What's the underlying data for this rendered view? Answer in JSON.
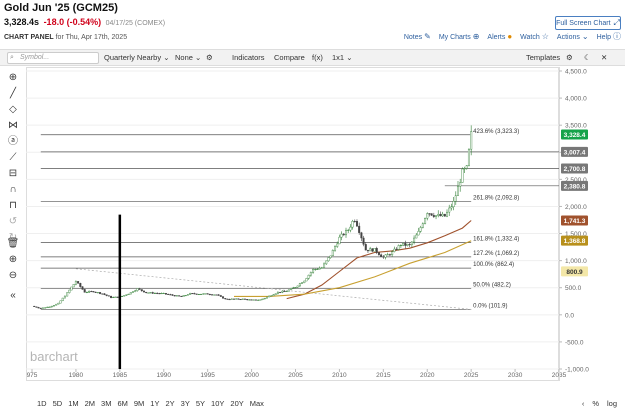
{
  "header": {
    "title": "Gold Jun '25 (GCM25)",
    "price": "3,328.4s",
    "change": "-18.0 (-0.54%)",
    "timestamp": "04/17/25 (COMEX)",
    "panel_label": "CHART PANEL",
    "panel_date": "for Thu, Apr 17th, 2025",
    "full_screen": "Full Screen Chart",
    "links": {
      "notes": "Notes",
      "my_charts": "My Charts",
      "alerts": "Alerts",
      "watch": "Watch",
      "actions": "Actions",
      "help": "Help"
    }
  },
  "toolbar": {
    "symbol_placeholder": "Symbol...",
    "period": "Quarterly Nearby",
    "overlay": "None",
    "indicators": "Indicators",
    "compare": "Compare",
    "fx": "f(x)",
    "layout": "1x1",
    "templates": "Templates"
  },
  "colors": {
    "current": "#16a34a",
    "gray_label": "#777777",
    "ma_brown": "#a0522d",
    "ma_gold": "#c8a030",
    "ma_label_gold": "#b8901c",
    "candle_up": "#2e7d32",
    "candle_down": "#444444"
  },
  "chart_data": {
    "type": "candlestick",
    "x_axis": {
      "range": [
        1975,
        2035
      ],
      "ticks": [
        "975",
        "1980",
        "1985",
        "1990",
        "1995",
        "2000",
        "2005",
        "2010",
        "2015",
        "2020",
        "2025",
        "2030",
        "2035"
      ]
    },
    "y_axis": {
      "range": [
        -1000,
        4500
      ],
      "ticks": [
        "4,500.0",
        "4,000.0",
        "3,500.0",
        "3,000.0",
        "2,500.0",
        "2,000.0",
        "1,500.0",
        "1,000.0",
        "500.0",
        "0.0",
        "-500.0",
        "-1,000.0"
      ]
    },
    "watermark": "barchart",
    "price_path": [
      [
        1975,
        160
      ],
      [
        1976,
        120
      ],
      [
        1977,
        150
      ],
      [
        1978,
        210
      ],
      [
        1979,
        400
      ],
      [
        1980,
        620
      ],
      [
        1981,
        420
      ],
      [
        1982,
        430
      ],
      [
        1983,
        390
      ],
      [
        1984,
        320
      ],
      [
        1985,
        330
      ],
      [
        1986,
        390
      ],
      [
        1987,
        480
      ],
      [
        1988,
        410
      ],
      [
        1989,
        400
      ],
      [
        1990,
        390
      ],
      [
        1991,
        360
      ],
      [
        1992,
        335
      ],
      [
        1993,
        390
      ],
      [
        1994,
        385
      ],
      [
        1995,
        385
      ],
      [
        1996,
        370
      ],
      [
        1997,
        290
      ],
      [
        1998,
        290
      ],
      [
        1999,
        290
      ],
      [
        2000,
        272
      ],
      [
        2001,
        276
      ],
      [
        2002,
        345
      ],
      [
        2003,
        415
      ],
      [
        2004,
        440
      ],
      [
        2005,
        515
      ],
      [
        2006,
        635
      ],
      [
        2007,
        835
      ],
      [
        2008,
        870
      ],
      [
        2009,
        1100
      ],
      [
        2010,
        1420
      ],
      [
        2011,
        1570
      ],
      [
        2011.7,
        1780
      ],
      [
        2012,
        1670
      ],
      [
        2013,
        1200
      ],
      [
        2014,
        1200
      ],
      [
        2015,
        1060
      ],
      [
        2016,
        1150
      ],
      [
        2017,
        1300
      ],
      [
        2018,
        1280
      ],
      [
        2019,
        1520
      ],
      [
        2020,
        1900
      ],
      [
        2021,
        1830
      ],
      [
        2022,
        1820
      ],
      [
        2023,
        2070
      ],
      [
        2024,
        2630
      ],
      [
        2024.5,
        2700
      ],
      [
        2025,
        3328
      ]
    ],
    "moving_averages": [
      {
        "color": "brown",
        "points": [
          [
            2004,
            300
          ],
          [
            2006,
            380
          ],
          [
            2008,
            550
          ],
          [
            2010,
            800
          ],
          [
            2012,
            1050
          ],
          [
            2014,
            1150
          ],
          [
            2016,
            1180
          ],
          [
            2018,
            1230
          ],
          [
            2020,
            1330
          ],
          [
            2022,
            1460
          ],
          [
            2024,
            1600
          ],
          [
            2025,
            1741
          ]
        ]
      },
      {
        "color": "gold",
        "points": [
          [
            1998,
            340
          ],
          [
            2002,
            340
          ],
          [
            2006,
            380
          ],
          [
            2010,
            500
          ],
          [
            2014,
            700
          ],
          [
            2018,
            950
          ],
          [
            2022,
            1150
          ],
          [
            2025,
            1368
          ]
        ]
      }
    ],
    "dashed_trend": {
      "points": [
        [
          1980,
          850
        ],
        [
          2025,
          100
        ]
      ]
    },
    "vertical_marker": {
      "x": 1985,
      "y": [
        -1000,
        1850
      ]
    },
    "fibonacci": {
      "x_start": 1976,
      "x_end": 2025,
      "levels": [
        {
          "value": 3323.3,
          "label": "423.6% (3,323.3)"
        },
        {
          "value": 2092.8,
          "label": "261.8% (2,092.8)"
        },
        {
          "value": 1332.4,
          "label": "161.8% (1,332.4)"
        },
        {
          "value": 1069.2,
          "label": "127.2% (1,069.2)"
        },
        {
          "value": 862.4,
          "label": "100.0% (862.4)"
        },
        {
          "value": 482.2,
          "label": "50.0% (482.2)"
        },
        {
          "value": 101.9,
          "label": "0.0% (101.9)"
        }
      ]
    },
    "horizontal_lines": [
      {
        "value": 3007.4,
        "x_start": 1976
      },
      {
        "value": 2700.8,
        "x_start": 1976
      },
      {
        "value": 2380.8,
        "x_start": 2022
      }
    ],
    "price_labels": [
      {
        "value": 3328.4,
        "text": "3,328.4",
        "color": "green"
      },
      {
        "value": 3007.4,
        "text": "3,007.4",
        "color": "gray"
      },
      {
        "value": 2700.8,
        "text": "2,700.8",
        "color": "gray"
      },
      {
        "value": 2380.8,
        "text": "2,380.8",
        "color": "gray"
      },
      {
        "value": 1741.3,
        "text": "1,741.3",
        "color": "brown"
      },
      {
        "value": 1368.8,
        "text": "1,368.8",
        "color": "gold"
      },
      {
        "value": 800.9,
        "text": "800.9",
        "color": "pale"
      }
    ]
  },
  "bottom": {
    "ranges": [
      "1D",
      "5D",
      "1M",
      "2M",
      "3M",
      "6M",
      "9M",
      "1Y",
      "2Y",
      "3Y",
      "5Y",
      "10Y",
      "20Y",
      "Max"
    ],
    "percent": "%",
    "log": "log"
  }
}
